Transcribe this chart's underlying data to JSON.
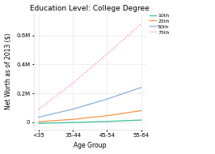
{
  "title": "Education Level: College Degree",
  "xlabel": "Age Group",
  "ylabel": "Net Worth as of 2013 ($)",
  "age_groups": [
    "<35",
    "35-44",
    "45-54",
    "55-64"
  ],
  "series": {
    "10th": [
      -8000,
      -2000,
      5000,
      15000
    ],
    "25th": [
      3000,
      20000,
      45000,
      80000
    ],
    "50th": [
      35000,
      90000,
      160000,
      240000
    ],
    "75th": [
      90000,
      270000,
      470000,
      680000
    ]
  },
  "colors": {
    "10th": "#3dbf9e",
    "25th": "#f5954a",
    "50th": "#8ab0d8",
    "75th": "#f878b8"
  },
  "line_styles": {
    "10th": "solid",
    "25th": "solid",
    "50th": "solid",
    "75th": "dotted"
  },
  "ylim": [
    -50000,
    750000
  ],
  "yticks": [
    0,
    200000,
    400000,
    600000
  ],
  "ytick_labels": [
    "0",
    "0.2M",
    "0.4M",
    "0.6M"
  ],
  "background_color": "#ffffff",
  "grid_color": "#e8e8e8",
  "title_fontsize": 6.5,
  "label_fontsize": 5.5,
  "tick_fontsize": 5,
  "legend_fontsize": 4.5
}
